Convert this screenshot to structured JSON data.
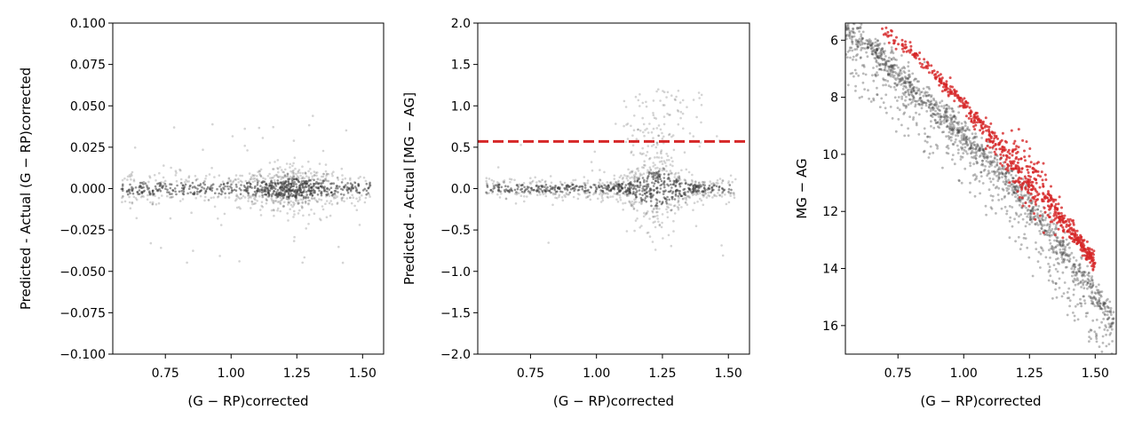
{
  "chart_data": [
    {
      "type": "scatter",
      "title": "",
      "xlabel": "(G − RP)corrected",
      "ylabel": "Predicted - Actual (G − RP)corrected",
      "xlim": [
        0.55,
        1.58
      ],
      "ylim": [
        -0.1,
        0.1
      ],
      "xticks": [
        "0.75",
        "1.00",
        "1.25",
        "1.50"
      ],
      "yticks": [
        "−0.100",
        "−0.075",
        "−0.050",
        "−0.025",
        "0.000",
        "0.025",
        "0.050",
        "0.075",
        "0.100"
      ],
      "series": [
        {
          "color": "#3a3a3a",
          "density": "dense band centered at 0.000, densest near x≈1.2",
          "x": [
            0.6,
            0.7,
            0.8,
            0.9,
            1.0,
            1.1,
            1.2,
            1.3,
            1.4,
            1.5
          ],
          "y": [
            0.0,
            0.0,
            0.0,
            0.0,
            0.0,
            0.0,
            0.0,
            0.0,
            0.0,
            0.0
          ]
        }
      ]
    },
    {
      "type": "scatter",
      "title": "",
      "xlabel": "(G − RP)corrected",
      "ylabel": "Predicted - Actual [MG − AG]",
      "xlim": [
        0.55,
        1.58
      ],
      "ylim": [
        -2.0,
        2.0
      ],
      "xticks": [
        "0.75",
        "1.00",
        "1.25",
        "1.50"
      ],
      "yticks": [
        "−2.0",
        "−1.5",
        "−1.0",
        "−0.5",
        "0.0",
        "0.5",
        "1.0",
        "1.5",
        "2.0"
      ],
      "hline": {
        "y": 0.57,
        "color": "#d62728",
        "style": "dashed"
      },
      "series": [
        {
          "color": "#3a3a3a",
          "density": "dense band at 0.0 with excess above 0.5 near x≈1.25",
          "x": [
            0.6,
            0.7,
            0.8,
            0.9,
            1.0,
            1.1,
            1.2,
            1.3,
            1.4,
            1.5
          ],
          "y": [
            0.0,
            0.0,
            0.0,
            0.0,
            0.0,
            0.0,
            0.0,
            0.0,
            0.0,
            0.0
          ]
        }
      ]
    },
    {
      "type": "scatter",
      "title": "",
      "xlabel": "(G − RP)corrected",
      "ylabel": "MG − AG",
      "xlim": [
        0.55,
        1.58
      ],
      "ylim": [
        17.0,
        5.4
      ],
      "inverted_y": true,
      "xticks": [
        "0.75",
        "1.00",
        "1.25",
        "1.50"
      ],
      "yticks": [
        "6",
        "8",
        "10",
        "12",
        "14",
        "16"
      ],
      "series": [
        {
          "color": "#3a3a3a",
          "name": "",
          "x": [
            0.55,
            0.65,
            0.75,
            0.85,
            0.95,
            1.05,
            1.15,
            1.25,
            1.35,
            1.45,
            1.55
          ],
          "y": [
            5.5,
            6.3,
            7.2,
            8.1,
            8.9,
            9.8,
            10.7,
            11.8,
            13.0,
            14.3,
            15.6
          ]
        },
        {
          "color": "#d62728",
          "name": "",
          "x": [
            0.68,
            0.8,
            0.9,
            1.0,
            1.1,
            1.2,
            1.3,
            1.4,
            1.5
          ],
          "y": [
            5.6,
            6.4,
            7.3,
            8.3,
            9.3,
            10.3,
            11.4,
            12.6,
            13.8
          ]
        }
      ]
    }
  ]
}
